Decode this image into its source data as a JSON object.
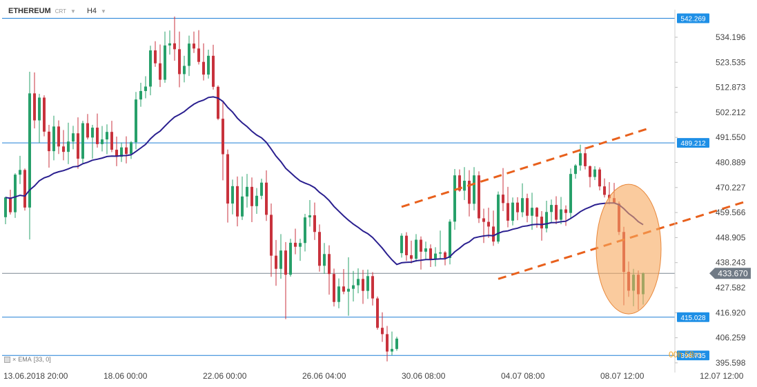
{
  "header": {
    "symbol": "ETHEREUM",
    "sub": "CRT",
    "timeframe": "H4"
  },
  "indicator": {
    "label": "EMA",
    "params": "[33, 0]"
  },
  "timer": {
    "main": "00h 58",
    "dim": "m"
  },
  "colors": {
    "bull": "#27a06a",
    "bear": "#c8323c",
    "ema": "#2a1f8f",
    "hline": "#1f7fd6",
    "channel": "#e8601c",
    "ellipse": "#f7a95d",
    "label_bg": "#1e8fe6",
    "price_bg": "#707a85"
  },
  "chart_data": {
    "type": "candlestick",
    "title": "ETHEREUM H4",
    "xlabel": "",
    "ylabel": "",
    "y_ticks": [
      534.196,
      523.535,
      512.873,
      502.212,
      491.55,
      480.889,
      470.227,
      459.566,
      448.905,
      438.243,
      427.582,
      416.92,
      406.259,
      395.598
    ],
    "ylim": [
      394.4,
      543.0
    ],
    "x_ticks": [
      "13.06.2018  20:00",
      "18.06  00:00",
      "22.06  00:00",
      "26.06  04:00",
      "30.06  08:00",
      "04.07  08:00",
      "08.07  12:00",
      "12.07  12:00"
    ],
    "current_price": "433.670",
    "levels": [
      {
        "label": "542.269",
        "value": 542.269
      },
      {
        "label": "489.212",
        "value": 489.212
      },
      {
        "label": "415.028",
        "value": 415.028
      },
      {
        "label": "398.735",
        "value": 398.735
      }
    ],
    "channel_lines": [
      {
        "from": [
          0,
          462.0
        ],
        "to": [
          51,
          495.3
        ]
      },
      {
        "from": [
          20,
          431.3
        ],
        "to": [
          71,
          464.1
        ]
      }
    ],
    "candles_ohlc": [
      [
        457.6,
        466.3,
        454.6,
        466.0
      ],
      [
        466.0,
        469.3,
        458.7,
        459.7
      ],
      [
        459.7,
        476.3,
        457.3,
        475.7
      ],
      [
        475.7,
        483.7,
        471.7,
        477.7
      ],
      [
        477.7,
        478.3,
        460.4,
        461.7
      ],
      [
        461.7,
        519.5,
        448.1,
        510.3
      ],
      [
        510.3,
        519.2,
        495.4,
        498.8
      ],
      [
        498.8,
        510.1,
        489.2,
        508.5
      ],
      [
        508.5,
        509.5,
        492.0,
        494.0
      ],
      [
        494.0,
        496.9,
        478.7,
        485.7
      ],
      [
        485.7,
        500.8,
        481.8,
        496.2
      ],
      [
        496.2,
        498.8,
        484.5,
        487.7
      ],
      [
        487.7,
        494.7,
        481.8,
        485.4
      ],
      [
        485.4,
        497.8,
        480.2,
        489.8
      ],
      [
        489.8,
        496.5,
        486.5,
        493.3
      ],
      [
        493.3,
        500.1,
        478.2,
        482.5
      ],
      [
        482.5,
        498.6,
        480.5,
        497.6
      ],
      [
        497.6,
        501.5,
        490.7,
        491.5
      ],
      [
        491.5,
        496.9,
        482.5,
        495.7
      ],
      [
        495.7,
        501.7,
        487.2,
        488.7
      ],
      [
        488.7,
        496.4,
        485.6,
        490.7
      ],
      [
        490.7,
        497.1,
        484.4,
        493.9
      ],
      [
        493.9,
        498.6,
        485.3,
        486.3
      ],
      [
        486.3,
        491.9,
        479.3,
        483.3
      ],
      [
        483.3,
        489.4,
        481.1,
        487.3
      ],
      [
        487.3,
        492.0,
        480.5,
        484.5
      ],
      [
        484.5,
        490.0,
        482.4,
        489.5
      ],
      [
        489.5,
        510.9,
        486.5,
        507.7
      ],
      [
        507.7,
        514.8,
        504.6,
        511.3
      ],
      [
        511.3,
        517.6,
        508.2,
        513.2
      ],
      [
        513.2,
        530.6,
        509.5,
        528.6
      ],
      [
        528.6,
        532.5,
        521.6,
        523.1
      ],
      [
        523.1,
        531.1,
        513.0,
        516.1
      ],
      [
        516.1,
        536.6,
        514.8,
        530.7
      ],
      [
        530.7,
        537.1,
        526.8,
        531.6
      ],
      [
        531.6,
        543.0,
        524.2,
        529.1
      ],
      [
        529.1,
        536.6,
        512.9,
        518.5
      ],
      [
        518.5,
        526.3,
        515.0,
        522.0
      ],
      [
        522.0,
        534.9,
        517.7,
        531.5
      ],
      [
        531.5,
        536.6,
        527.5,
        529.4
      ],
      [
        529.4,
        537.2,
        522.6,
        523.7
      ],
      [
        523.7,
        531.6,
        515.8,
        518.3
      ],
      [
        518.3,
        528.9,
        516.6,
        526.3
      ],
      [
        526.3,
        531.0,
        511.9,
        513.1
      ],
      [
        513.1,
        513.7,
        498.9,
        499.5
      ],
      [
        499.5,
        507.2,
        473.3,
        484.4
      ],
      [
        484.4,
        486.4,
        455.3,
        463.4
      ],
      [
        463.4,
        473.6,
        458.8,
        470.8
      ],
      [
        470.8,
        474.9,
        453.7,
        457.9
      ],
      [
        457.9,
        474.9,
        456.4,
        466.4
      ],
      [
        466.4,
        476.0,
        461.7,
        470.5
      ],
      [
        470.5,
        474.5,
        455.5,
        462.3
      ],
      [
        462.3,
        470.0,
        459.0,
        466.7
      ],
      [
        466.7,
        474.0,
        465.2,
        472.3
      ],
      [
        472.3,
        477.5,
        456.0,
        458.6
      ],
      [
        458.6,
        463.4,
        432.2,
        441.2
      ],
      [
        441.2,
        447.9,
        428.4,
        435.6
      ],
      [
        435.6,
        450.4,
        431.4,
        443.4
      ],
      [
        443.4,
        447.0,
        414.2,
        433.1
      ],
      [
        433.1,
        448.4,
        432.3,
        446.7
      ],
      [
        446.7,
        452.7,
        441.8,
        445.0
      ],
      [
        445.0,
        448.4,
        439.0,
        446.6
      ],
      [
        446.6,
        459.0,
        443.0,
        457.5
      ],
      [
        457.5,
        464.9,
        453.6,
        458.4
      ],
      [
        458.4,
        463.8,
        447.9,
        451.3
      ],
      [
        451.3,
        454.5,
        434.4,
        436.9
      ],
      [
        436.9,
        446.6,
        433.5,
        441.9
      ],
      [
        441.9,
        445.6,
        424.6,
        433.4
      ],
      [
        433.4,
        435.7,
        419.6,
        421.5
      ],
      [
        421.5,
        431.5,
        418.8,
        428.1
      ],
      [
        428.1,
        435.5,
        424.8,
        425.9
      ],
      [
        425.9,
        440.5,
        415.6,
        427.1
      ],
      [
        427.1,
        434.7,
        421.7,
        428.6
      ],
      [
        428.6,
        435.8,
        425.2,
        431.3
      ],
      [
        431.3,
        435.2,
        420.7,
        426.2
      ],
      [
        426.2,
        435.3,
        422.8,
        432.5
      ],
      [
        432.5,
        434.2,
        420.0,
        423.0
      ],
      [
        423.0,
        423.8,
        409.7,
        410.5
      ],
      [
        410.5,
        417.1,
        404.5,
        407.8
      ],
      [
        407.8,
        411.3,
        396.2,
        400.4
      ],
      [
        400.4,
        408.9,
        398.8,
        401.5
      ],
      [
        401.5,
        406.7,
        400.7,
        405.9
      ],
      [
        442.3,
        450.7,
        440.4,
        449.7
      ],
      [
        449.7,
        451.2,
        439.0,
        441.4
      ],
      [
        441.4,
        447.6,
        437.9,
        439.9
      ],
      [
        439.9,
        450.4,
        438.6,
        448.0
      ],
      [
        448.0,
        449.4,
        435.3,
        442.9
      ],
      [
        442.9,
        447.2,
        439.7,
        444.3
      ],
      [
        444.3,
        446.0,
        436.4,
        439.5
      ],
      [
        439.5,
        444.8,
        436.6,
        442.1
      ],
      [
        442.1,
        451.9,
        439.9,
        442.6
      ],
      [
        442.6,
        443.2,
        437.1,
        440.2
      ],
      [
        440.2,
        456.7,
        437.5,
        455.7
      ],
      [
        455.7,
        478.1,
        452.2,
        475.4
      ],
      [
        475.4,
        477.9,
        468.4,
        468.9
      ],
      [
        468.9,
        478.9,
        464.9,
        473.1
      ],
      [
        473.1,
        477.6,
        457.9,
        463.3
      ],
      [
        463.3,
        478.9,
        460.5,
        475.4
      ],
      [
        475.4,
        477.1,
        455.1,
        457.1
      ],
      [
        457.1,
        461.2,
        446.6,
        455.6
      ],
      [
        455.6,
        461.6,
        448.8,
        453.6
      ],
      [
        453.6,
        460.4,
        445.4,
        447.2
      ],
      [
        447.2,
        468.5,
        446.3,
        467.2
      ],
      [
        467.2,
        478.5,
        460.2,
        463.6
      ],
      [
        463.6,
        470.5,
        453.3,
        456.1
      ],
      [
        456.1,
        466.0,
        454.1,
        463.8
      ],
      [
        463.8,
        466.1,
        456.3,
        459.7
      ],
      [
        459.7,
        472.0,
        457.6,
        465.7
      ],
      [
        465.7,
        467.6,
        455.4,
        458.2
      ],
      [
        458.2,
        468.0,
        452.2,
        461.6
      ],
      [
        461.6,
        461.9,
        453.1,
        457.8
      ],
      [
        457.8,
        460.2,
        447.6,
        452.8
      ],
      [
        452.8,
        464.6,
        451.1,
        459.8
      ],
      [
        459.8,
        465.1,
        455.5,
        462.8
      ],
      [
        462.8,
        466.5,
        454.6,
        456.5
      ],
      [
        456.5,
        466.2,
        454.6,
        460.9
      ],
      [
        460.9,
        462.6,
        453.9,
        459.4
      ],
      [
        459.4,
        478.3,
        456.8,
        476.0
      ],
      [
        476.0,
        480.2,
        474.0,
        479.6
      ],
      [
        479.6,
        488.5,
        477.4,
        484.8
      ],
      [
        484.8,
        487.4,
        477.9,
        479.3
      ],
      [
        479.3,
        479.6,
        470.3,
        474.7
      ],
      [
        474.7,
        479.3,
        473.4,
        477.9
      ],
      [
        477.9,
        478.8,
        469.0,
        470.7
      ],
      [
        470.7,
        474.1,
        466.0,
        467.1
      ],
      [
        467.1,
        472.5,
        463.0,
        465.7
      ],
      [
        465.7,
        472.2,
        463.4,
        463.4
      ],
      [
        463.4,
        464.3,
        450.0,
        451.3
      ],
      [
        451.3,
        453.5,
        420.1,
        434.3
      ],
      [
        434.3,
        438.7,
        423.7,
        426.3
      ],
      [
        426.3,
        435.6,
        419.7,
        433.1
      ],
      [
        433.1,
        434.9,
        418.2,
        424.8
      ],
      [
        424.8,
        434.1,
        420.4,
        433.7
      ]
    ]
  }
}
